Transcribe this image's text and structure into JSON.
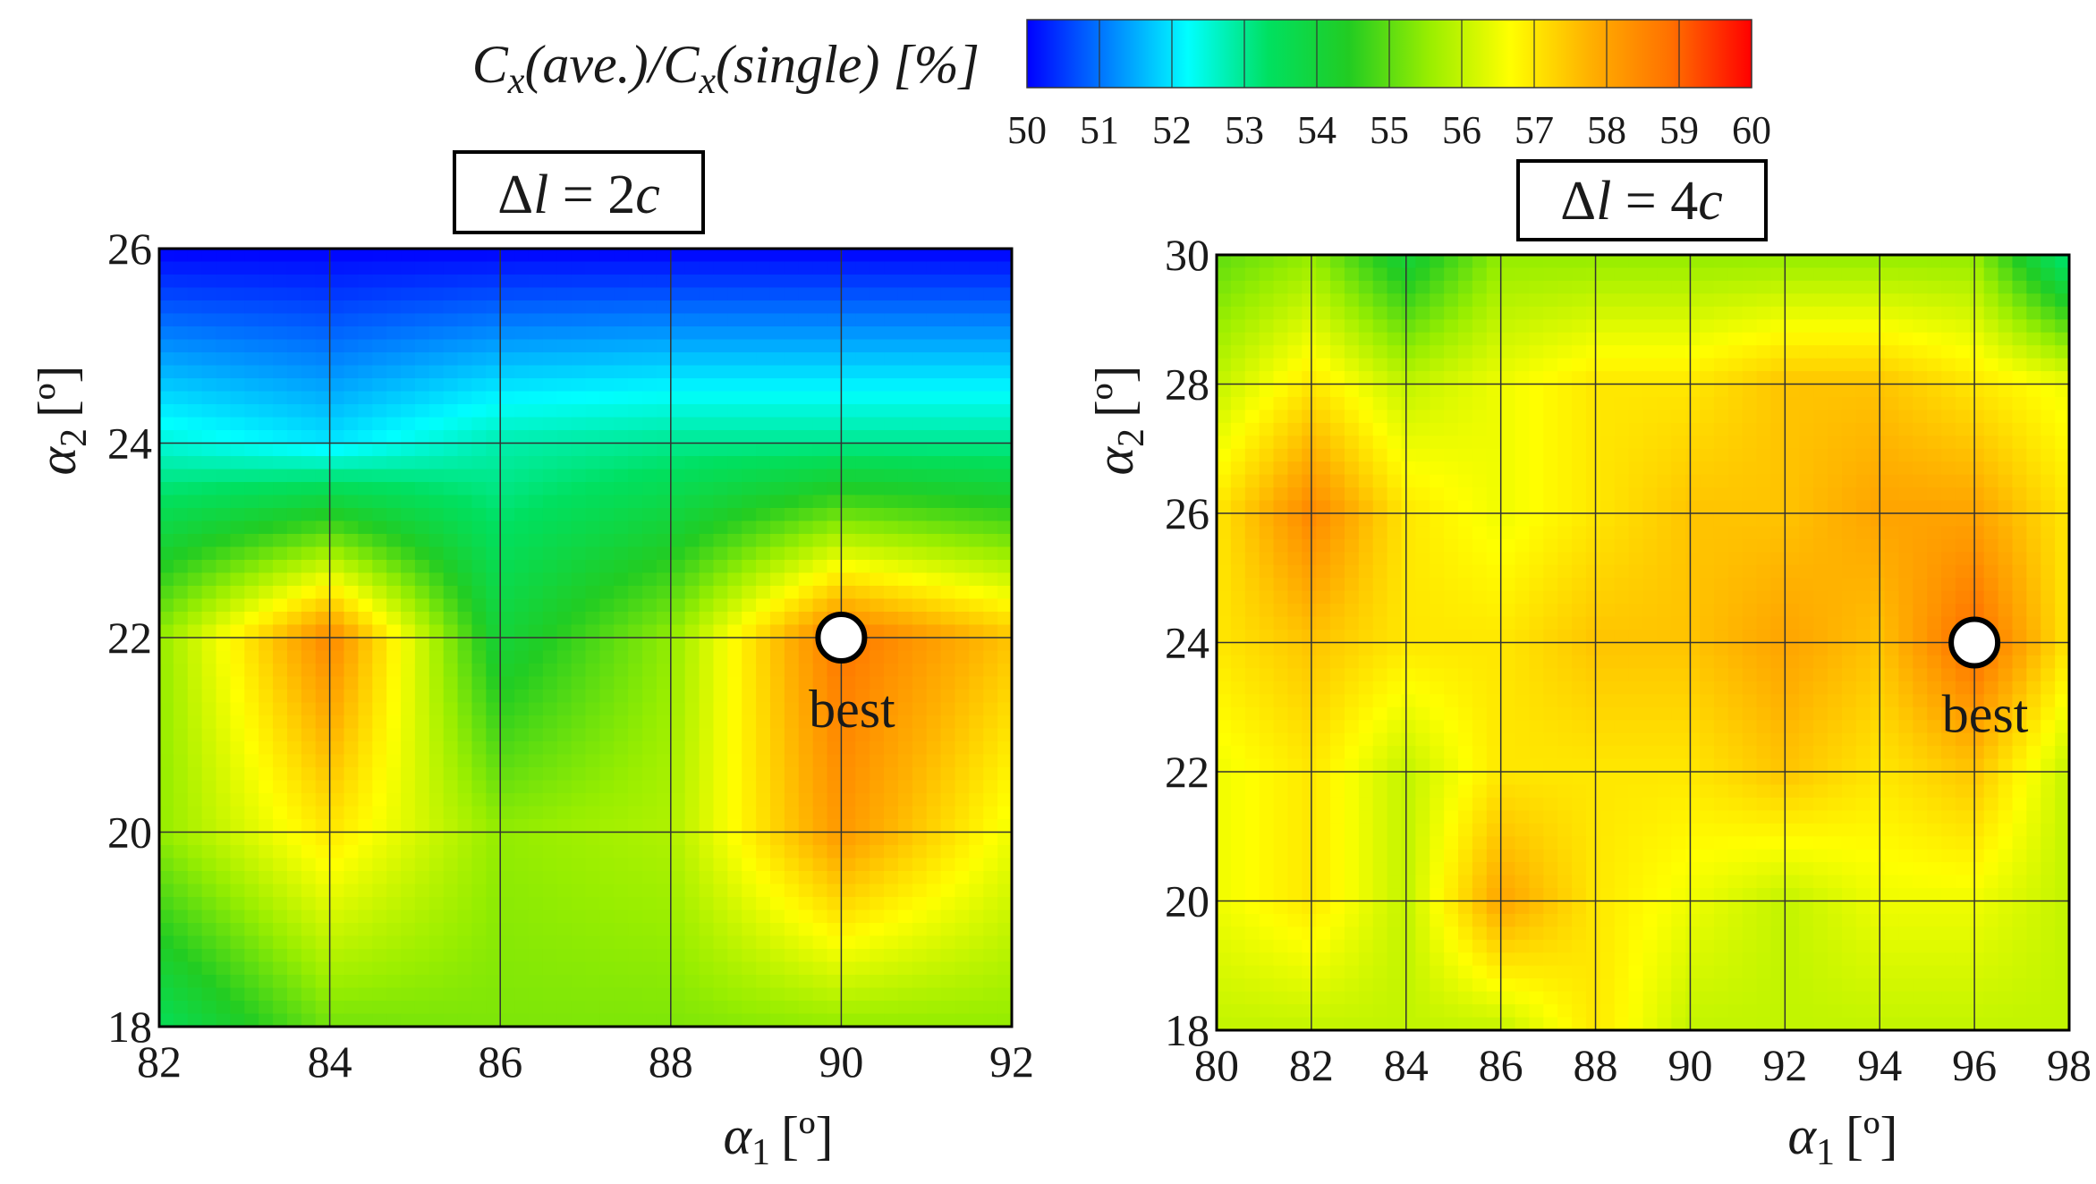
{
  "colorbar": {
    "label_C": "C",
    "label_sub": "x",
    "label_mid": "(ave.)/",
    "label_C2": "C",
    "label_sub2": "x",
    "label_end": "(single) [%]",
    "min": 50,
    "max": 60,
    "ticks": [
      "50",
      "51",
      "52",
      "53",
      "54",
      "55",
      "56",
      "57",
      "58",
      "59",
      "60"
    ],
    "colors": [
      "#0000ff",
      "#0080ff",
      "#00ffff",
      "#00e060",
      "#22cc22",
      "#99ee00",
      "#ffff00",
      "#ffb000",
      "#ff7000",
      "#ff0000"
    ]
  },
  "chart_data": [
    {
      "type": "heatmap",
      "title_delta": "Δ",
      "title_l": "l",
      "title_rest": " = 2",
      "title_c": "c",
      "x_axis_symbol": "α",
      "x_axis_sub": "1",
      "x_axis_unit": "[º]",
      "y_axis_symbol": "α",
      "y_axis_sub": "2",
      "y_axis_unit": "[º]",
      "x": [
        82,
        84,
        86,
        88,
        90,
        92
      ],
      "y": [
        18,
        20,
        22,
        24,
        26
      ],
      "x_ticks": [
        "82",
        "84",
        "86",
        "88",
        "90",
        "92"
      ],
      "y_ticks": [
        "18",
        "20",
        "22",
        "24",
        "26"
      ],
      "xlim": [
        82,
        92
      ],
      "ylim": [
        18,
        26
      ],
      "grid": true,
      "z": [
        [
          53.5,
          55.2,
          55.3,
          55.3,
          55.5,
          55.5
        ],
        [
          55.5,
          57.0,
          55.5,
          55.8,
          58.2,
          56.5
        ],
        [
          55.5,
          58.5,
          54.0,
          55.5,
          58.8,
          57.5
        ],
        [
          52.5,
          52.0,
          52.8,
          53.0,
          53.0,
          53.0
        ],
        [
          50.0,
          50.0,
          50.0,
          50.0,
          50.0,
          50.0
        ]
      ],
      "best": {
        "x": 90,
        "y": 22,
        "label": "best"
      }
    },
    {
      "type": "heatmap",
      "title_delta": "Δ",
      "title_l": "l",
      "title_rest": " = 4",
      "title_c": "c",
      "x_axis_symbol": "α",
      "x_axis_sub": "1",
      "x_axis_unit": "[º]",
      "y_axis_symbol": "α",
      "y_axis_sub": "2",
      "y_axis_unit": "[º]",
      "x": [
        80,
        82,
        84,
        86,
        88,
        90,
        92,
        94,
        96,
        98
      ],
      "y": [
        18,
        20,
        22,
        24,
        26,
        28,
        30
      ],
      "x_ticks": [
        "80",
        "82",
        "84",
        "86",
        "88",
        "90",
        "92",
        "94",
        "96",
        "98"
      ],
      "y_ticks": [
        "18",
        "20",
        "22",
        "24",
        "26",
        "28",
        "30"
      ],
      "xlim": [
        80,
        98
      ],
      "ylim": [
        18,
        30
      ],
      "grid": true,
      "z": [
        [
          56.0,
          56.0,
          56.0,
          56.0,
          57.0,
          56.0,
          56.0,
          56.0,
          56.0,
          56.0
        ],
        [
          56.5,
          57.0,
          56.0,
          58.0,
          57.0,
          56.5,
          56.0,
          56.5,
          56.5,
          56.0
        ],
        [
          56.5,
          57.0,
          56.0,
          57.0,
          57.0,
          57.0,
          57.5,
          57.0,
          57.5,
          56.0
        ],
        [
          57.0,
          57.5,
          57.0,
          57.0,
          57.5,
          57.5,
          58.0,
          57.5,
          59.0,
          57.0
        ],
        [
          57.0,
          58.5,
          57.0,
          56.5,
          57.0,
          57.5,
          57.5,
          58.0,
          58.0,
          57.0
        ],
        [
          56.0,
          57.0,
          56.0,
          56.5,
          57.0,
          57.0,
          57.5,
          57.5,
          57.0,
          56.5
        ],
        [
          55.0,
          55.5,
          54.0,
          55.5,
          55.5,
          55.5,
          55.5,
          55.5,
          55.5,
          53.0
        ]
      ],
      "best": {
        "x": 96,
        "y": 24,
        "label": "best"
      }
    }
  ]
}
